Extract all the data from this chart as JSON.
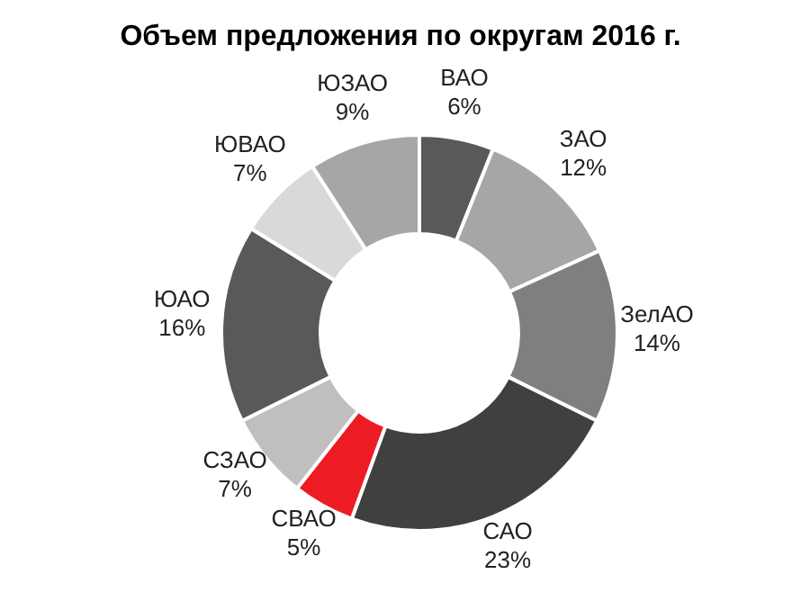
{
  "chart_data": {
    "type": "donut",
    "title": "Объем предложения по округам 2016 г.",
    "categories": [
      "ВАО",
      "ЗАО",
      "ЗелАО",
      "САО",
      "СВАО",
      "СЗАО",
      "ЮАО",
      "ЮВАО",
      "ЮЗАО"
    ],
    "values": [
      6,
      12,
      14,
      23,
      5,
      7,
      16,
      7,
      9
    ],
    "colors": [
      "#595959",
      "#a6a6a6",
      "#7f7f7f",
      "#404040",
      "#ed1c24",
      "#bfbfbf",
      "#595959",
      "#d9d9d9",
      "#a6a6a6"
    ],
    "value_labels": [
      "6%",
      "12%",
      "14%",
      "23%",
      "5%",
      "7%",
      "16%",
      "7%",
      "9%"
    ]
  }
}
